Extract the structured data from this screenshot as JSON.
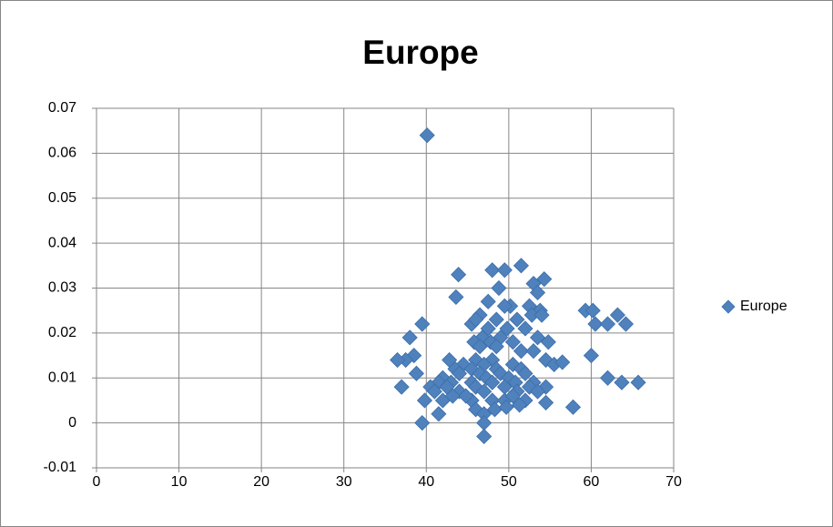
{
  "chart_data": {
    "type": "scatter",
    "title": "Europe",
    "series": [
      {
        "name": "Europe",
        "color": "#4f81bd",
        "x": [
          40.1,
          51.5,
          48,
          49.5,
          54.3,
          43.9,
          53,
          48.8,
          53.5,
          43.6,
          47.5,
          50.2,
          52.5,
          49.5,
          46.5,
          45.5,
          39.5,
          53.8,
          59.3,
          60.2,
          63.2,
          52.8,
          54,
          48.5,
          51,
          46,
          60.5,
          62,
          64.2,
          47.5,
          49.8,
          52,
          38,
          46.8,
          49,
          53.5,
          45.8,
          47.8,
          50.5,
          54.8,
          46.5,
          48.5,
          51.5,
          53,
          38.5,
          60,
          37.5,
          36.5,
          42.8,
          46,
          48,
          54.5,
          55.5,
          56.5,
          44.5,
          47,
          50.5,
          43.5,
          45.5,
          48.5,
          51.5,
          38.8,
          44,
          46.5,
          49,
          52,
          47.3,
          50,
          42,
          62,
          63.7,
          65.7,
          53,
          41.5,
          43,
          45.5,
          48,
          50.8,
          37,
          40.5,
          42.5,
          46,
          49.5,
          52.5,
          54.5,
          41,
          44,
          47,
          51,
          53.5,
          39.8,
          42,
          45.5,
          48,
          49.5,
          52,
          54.5,
          57.8,
          41.5,
          46,
          47,
          48.3,
          49.7,
          51.3,
          39.5,
          47,
          47,
          44.8,
          43.2,
          50.5
        ],
        "values": [
          0.064,
          0.035,
          0.034,
          0.034,
          0.032,
          0.033,
          0.031,
          0.03,
          0.029,
          0.028,
          0.027,
          0.026,
          0.026,
          0.026,
          0.024,
          0.022,
          0.022,
          0.025,
          0.025,
          0.025,
          0.024,
          0.024,
          0.024,
          0.023,
          0.023,
          0.023,
          0.022,
          0.022,
          0.022,
          0.021,
          0.021,
          0.021,
          0.019,
          0.019,
          0.019,
          0.019,
          0.018,
          0.018,
          0.018,
          0.018,
          0.017,
          0.017,
          0.016,
          0.016,
          0.015,
          0.015,
          0.014,
          0.014,
          0.014,
          0.014,
          0.014,
          0.014,
          0.013,
          0.0135,
          0.013,
          0.013,
          0.013,
          0.012,
          0.012,
          0.012,
          0.012,
          0.011,
          0.011,
          0.011,
          0.011,
          0.011,
          0.01,
          0.01,
          0.01,
          0.01,
          0.009,
          0.009,
          0.009,
          0.009,
          0.009,
          0.009,
          0.009,
          0.009,
          0.008,
          0.008,
          0.008,
          0.008,
          0.008,
          0.008,
          0.008,
          0.007,
          0.007,
          0.007,
          0.007,
          0.007,
          0.005,
          0.005,
          0.005,
          0.005,
          0.005,
          0.005,
          0.0045,
          0.0035,
          0.002,
          0.003,
          0.002,
          0.003,
          0.0035,
          0.004,
          0,
          0,
          -0.003,
          0.006,
          0.006,
          0.006
        ]
      }
    ],
    "xlim": [
      0,
      70
    ],
    "xticks": [
      0,
      10,
      20,
      30,
      40,
      50,
      60,
      70
    ],
    "ylim": [
      -0.01,
      0.07
    ],
    "yticks": [
      -0.01,
      0,
      0.01,
      0.02,
      0.03,
      0.04,
      0.05,
      0.06,
      0.07
    ],
    "grid": true,
    "legend": "right"
  }
}
